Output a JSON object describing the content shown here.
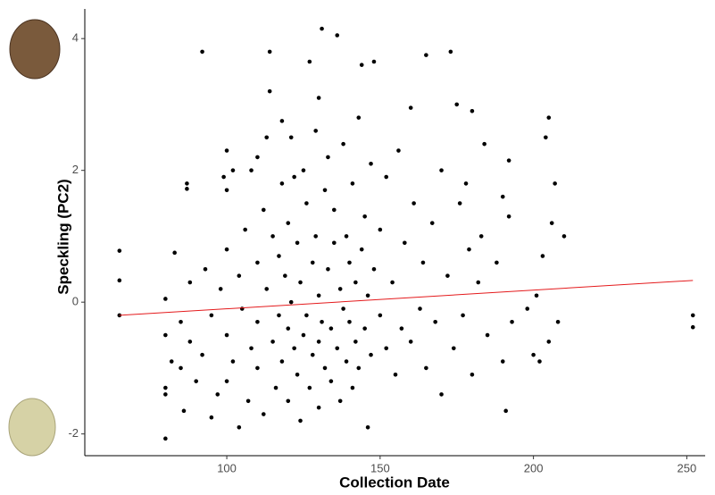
{
  "chart_data": {
    "type": "scatter",
    "x_label": "Collection Date",
    "y_label": "Speckling (PC2)",
    "xlim": [
      53.7,
      256
    ],
    "ylim": [
      -2.33,
      4.45
    ],
    "xticks": [
      100,
      150,
      200,
      250
    ],
    "yticks": [
      -2,
      0,
      2,
      4
    ],
    "color": "#000000",
    "x": [
      65,
      65,
      65,
      80,
      80,
      80,
      80,
      80,
      82,
      83,
      85,
      85,
      86,
      87,
      87,
      88,
      88,
      90,
      92,
      92,
      93,
      95,
      95,
      97,
      98,
      99,
      100,
      100,
      100,
      100,
      100,
      102,
      102,
      104,
      104,
      105,
      106,
      107,
      108,
      108,
      110,
      110,
      110,
      110,
      112,
      112,
      113,
      113,
      114,
      114,
      115,
      115,
      116,
      117,
      117,
      118,
      118,
      118,
      119,
      120,
      120,
      120,
      121,
      121,
      122,
      122,
      123,
      123,
      124,
      124,
      125,
      125,
      126,
      126,
      127,
      127,
      128,
      128,
      129,
      129,
      130,
      130,
      130,
      130,
      131,
      131,
      132,
      132,
      133,
      133,
      134,
      134,
      135,
      135,
      136,
      136,
      137,
      137,
      138,
      138,
      139,
      139,
      140,
      140,
      141,
      141,
      142,
      142,
      143,
      143,
      144,
      144,
      145,
      145,
      146,
      146,
      147,
      147,
      148,
      148,
      150,
      150,
      152,
      152,
      154,
      155,
      156,
      157,
      158,
      160,
      160,
      161,
      163,
      164,
      165,
      165,
      167,
      168,
      170,
      170,
      172,
      173,
      174,
      175,
      176,
      177,
      178,
      179,
      180,
      180,
      182,
      183,
      184,
      185,
      188,
      190,
      190,
      191,
      192,
      192,
      193,
      198,
      200,
      201,
      202,
      203,
      204,
      205,
      205,
      206,
      207,
      208,
      210,
      252,
      252
    ],
    "values": [
      0.78,
      0.33,
      -0.2,
      -2.07,
      -1.3,
      -1.4,
      -0.5,
      0.05,
      -0.9,
      0.75,
      -1.0,
      -0.3,
      -1.65,
      1.8,
      1.72,
      -0.6,
      0.3,
      -1.2,
      3.8,
      -0.8,
      0.5,
      -1.75,
      -0.2,
      -1.4,
      0.2,
      1.9,
      2.3,
      1.7,
      0.8,
      -0.5,
      -1.2,
      2.0,
      -0.9,
      -1.9,
      0.4,
      -0.1,
      1.1,
      -1.5,
      2.0,
      -0.7,
      2.2,
      0.6,
      -0.3,
      -1.0,
      1.4,
      -1.7,
      2.5,
      0.2,
      3.2,
      3.8,
      -0.6,
      1.0,
      -1.3,
      0.7,
      -0.2,
      2.75,
      1.8,
      -0.9,
      0.4,
      1.2,
      -0.4,
      -1.5,
      2.5,
      0.0,
      -0.7,
      1.9,
      0.9,
      -1.1,
      -1.8,
      0.3,
      2.0,
      -0.5,
      1.5,
      -0.2,
      3.65,
      -1.3,
      0.6,
      -0.8,
      2.6,
      1.0,
      3.1,
      0.1,
      -0.6,
      -1.6,
      4.15,
      -0.3,
      1.7,
      -1.0,
      0.5,
      2.2,
      -0.4,
      -1.2,
      0.9,
      1.4,
      4.05,
      -0.7,
      0.2,
      -1.5,
      2.4,
      -0.1,
      1.0,
      -0.9,
      0.6,
      -0.3,
      1.8,
      -1.3,
      0.3,
      -0.6,
      2.8,
      -1.0,
      0.8,
      3.6,
      -0.4,
      1.3,
      -1.9,
      0.1,
      2.1,
      -0.8,
      0.5,
      3.65,
      -0.2,
      1.1,
      -0.7,
      1.9,
      0.3,
      -1.1,
      2.3,
      -0.4,
      0.9,
      2.95,
      -0.6,
      1.5,
      -0.1,
      0.6,
      3.75,
      -1.0,
      1.2,
      -0.3,
      2.0,
      -1.4,
      0.4,
      3.8,
      -0.7,
      3.0,
      1.5,
      -0.2,
      1.8,
      0.8,
      2.9,
      -1.1,
      0.3,
      1.0,
      2.4,
      -0.5,
      0.6,
      1.6,
      -0.9,
      -1.65,
      2.15,
      1.3,
      -0.3,
      -0.1,
      -0.8,
      0.1,
      -0.9,
      0.7,
      2.5,
      2.8,
      -0.6,
      1.2,
      1.8,
      -0.3,
      1.0,
      -0.2,
      -0.38
    ],
    "trend": {
      "x": [
        65,
        252
      ],
      "values": [
        -0.2,
        0.33
      ],
      "color": "#e41a1c"
    }
  }
}
